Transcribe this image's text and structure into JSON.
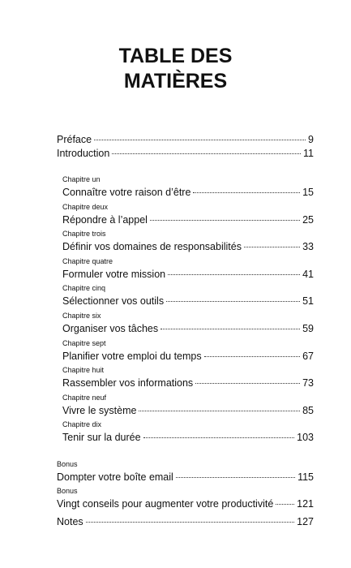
{
  "header": {
    "title": "TABLE DES MATIÈRES"
  },
  "front_matter": [
    {
      "title": "Préface",
      "page": 9
    },
    {
      "title": "Introduction",
      "page": 11
    }
  ],
  "chapters": [
    {
      "label": "Chapitre un",
      "title": "Connaître votre raison d’être",
      "page": 15
    },
    {
      "label": "Chapitre deux",
      "title": "Répondre à l’appel",
      "page": 25
    },
    {
      "label": "Chapitre trois",
      "title": "Définir vos domaines de responsabilités",
      "page": 33
    },
    {
      "label": "Chapitre quatre",
      "title": "Formuler votre mission",
      "page": 41
    },
    {
      "label": "Chapitre cinq",
      "title": "Sélectionner vos outils",
      "page": 51
    },
    {
      "label": "Chapitre six",
      "title": "Organiser vos tâches",
      "page": 59
    },
    {
      "label": "Chapitre sept",
      "title": "Planifier votre emploi du temps",
      "page": 67
    },
    {
      "label": "Chapitre huit",
      "title": "Rassembler vos informations",
      "page": 73
    },
    {
      "label": "Chapitre neuf",
      "title": "Vivre le système",
      "page": 85
    },
    {
      "label": "Chapitre dix",
      "title": "Tenir sur la durée",
      "page": 103
    }
  ],
  "bonus": [
    {
      "label": "Bonus",
      "title": "Dompter votre boîte email",
      "page": 115
    },
    {
      "label": "Bonus",
      "title": "Vingt conseils pour augmenter votre productivité",
      "page": 121
    }
  ],
  "back_matter": [
    {
      "title": "Notes",
      "page": 127
    }
  ]
}
